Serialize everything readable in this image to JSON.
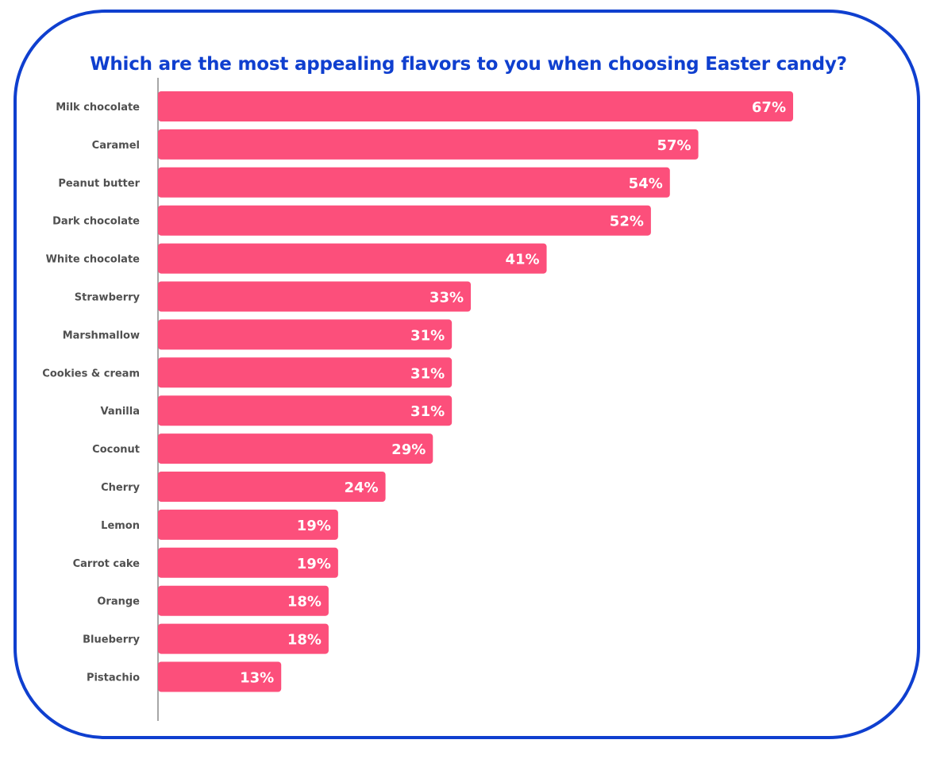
{
  "chart_data": {
    "type": "bar",
    "orientation": "horizontal",
    "title": "Which are the most appealing flavors to you when choosing Easter candy?",
    "categories": [
      "Milk chocolate",
      "Caramel",
      "Peanut butter",
      "Dark chocolate",
      "White chocolate",
      "Strawberry",
      "Marshmallow",
      "Cookies & cream",
      "Vanilla",
      "Coconut",
      "Cherry",
      "Lemon",
      "Carrot cake",
      "Orange",
      "Blueberry",
      "Pistachio"
    ],
    "values": [
      67,
      57,
      54,
      52,
      41,
      33,
      31,
      31,
      31,
      29,
      24,
      19,
      19,
      18,
      18,
      13
    ],
    "value_labels": [
      "67%",
      "57%",
      "54%",
      "52%",
      "41%",
      "33%",
      "31%",
      "31%",
      "31%",
      "29%",
      "24%",
      "19%",
      "19%",
      "18%",
      "18%",
      "13%"
    ],
    "xlim": [
      0,
      67
    ],
    "unit": "%",
    "grid": false,
    "legend": "none",
    "colors": {
      "bar": "#fc4f7b",
      "value_text": "#ffffff",
      "category_text": "#505050",
      "axis": "#8a8a8a",
      "title": "#0f3fcf",
      "frame": "#0f3fcf"
    }
  }
}
